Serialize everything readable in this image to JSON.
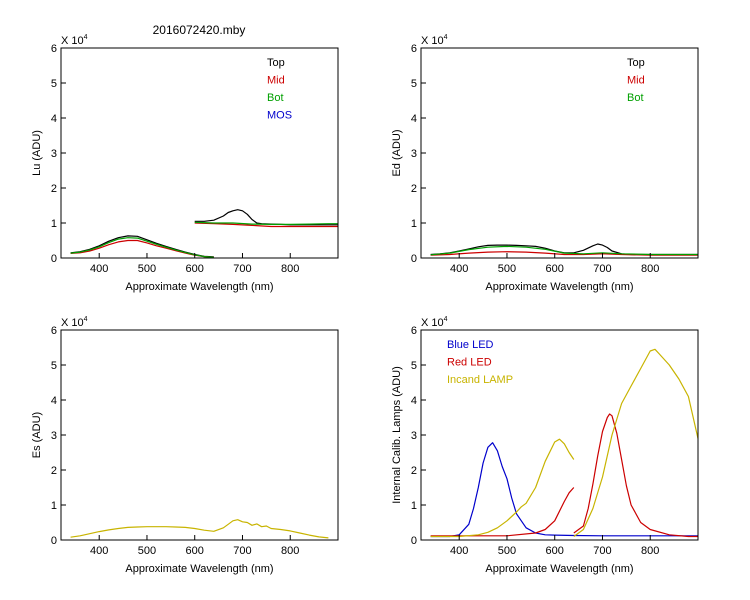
{
  "figure_title": "2016072420.mby",
  "multiplier_label": "X 10",
  "multiplier_exponent": "4",
  "colors": {
    "black": "#000000",
    "red": "#cc0000",
    "green": "#00a000",
    "blue": "#0000cc",
    "olive": "#c8b400"
  },
  "chart_data": [
    {
      "id": "lu",
      "type": "line",
      "title": "2016072420.mby",
      "xlabel": "Approximate Wavelength (nm)",
      "ylabel": "Lu (ADU)",
      "xlim": [
        320,
        900
      ],
      "ylim": [
        0,
        6
      ],
      "xticks": [
        400,
        500,
        600,
        700,
        800
      ],
      "yticks": [
        0,
        1,
        2,
        3,
        4,
        5,
        6
      ],
      "y_multiplier": "X 10^4",
      "legend": "top-right",
      "series": [
        {
          "name": "Top",
          "color": "#000000",
          "segments": [
            {
              "x": [
                340,
                360,
                380,
                400,
                420,
                440,
                460,
                480,
                500,
                520,
                540,
                560,
                580,
                600,
                620,
                640
              ],
              "y": [
                0.15,
                0.18,
                0.25,
                0.35,
                0.48,
                0.58,
                0.63,
                0.62,
                0.52,
                0.42,
                0.33,
                0.25,
                0.17,
                0.1,
                0.05,
                0.03
              ]
            },
            {
              "x": [
                600,
                620,
                640,
                660,
                670,
                680,
                690,
                700,
                710,
                720,
                730,
                740,
                760,
                780,
                800,
                820,
                840,
                860,
                880,
                900
              ],
              "y": [
                1.05,
                1.05,
                1.08,
                1.2,
                1.3,
                1.35,
                1.38,
                1.35,
                1.25,
                1.1,
                1.0,
                0.98,
                0.97,
                0.96,
                0.95,
                0.95,
                0.95,
                0.95,
                0.95,
                0.95
              ]
            }
          ]
        },
        {
          "name": "Mid",
          "color": "#cc0000",
          "segments": [
            {
              "x": [
                340,
                360,
                380,
                400,
                420,
                440,
                460,
                480,
                500,
                520,
                540,
                560,
                580,
                600,
                620,
                640
              ],
              "y": [
                0.13,
                0.15,
                0.2,
                0.28,
                0.38,
                0.46,
                0.5,
                0.5,
                0.43,
                0.35,
                0.28,
                0.21,
                0.14,
                0.08,
                0.04,
                0.02
              ]
            },
            {
              "x": [
                600,
                640,
                680,
                720,
                760,
                800,
                840,
                880,
                900
              ],
              "y": [
                1.0,
                0.98,
                0.96,
                0.93,
                0.9,
                0.9,
                0.9,
                0.9,
                0.9
              ]
            }
          ]
        },
        {
          "name": "Bot",
          "color": "#00a000",
          "segments": [
            {
              "x": [
                340,
                360,
                380,
                400,
                420,
                440,
                460,
                480,
                500,
                520,
                540,
                560,
                580,
                600,
                620,
                640
              ],
              "y": [
                0.14,
                0.17,
                0.23,
                0.32,
                0.44,
                0.54,
                0.58,
                0.57,
                0.48,
                0.39,
                0.31,
                0.23,
                0.16,
                0.09,
                0.04,
                0.02
              ]
            },
            {
              "x": [
                600,
                640,
                680,
                720,
                760,
                800,
                840,
                880,
                900
              ],
              "y": [
                1.02,
                1.0,
                1.0,
                0.97,
                0.96,
                0.96,
                0.97,
                0.98,
                0.98
              ]
            }
          ]
        },
        {
          "name": "MOS",
          "color": "#0000cc",
          "segments": []
        }
      ]
    },
    {
      "id": "ed",
      "type": "line",
      "xlabel": "Approximate Wavelength (nm)",
      "ylabel": "Ed  (ADU)",
      "xlim": [
        320,
        900
      ],
      "ylim": [
        0,
        6
      ],
      "xticks": [
        400,
        500,
        600,
        700,
        800
      ],
      "yticks": [
        0,
        1,
        2,
        3,
        4,
        5,
        6
      ],
      "y_multiplier": "X 10^4",
      "legend": "top-right",
      "series": [
        {
          "name": "Top",
          "color": "#000000",
          "segments": [
            {
              "x": [
                340,
                360,
                380,
                400,
                420,
                440,
                460,
                480,
                500,
                520,
                540,
                560,
                580,
                600,
                620,
                640,
                660,
                680,
                690,
                700,
                710,
                720,
                740,
                760,
                780,
                800,
                840,
                880,
                900
              ],
              "y": [
                0.1,
                0.12,
                0.15,
                0.2,
                0.26,
                0.32,
                0.36,
                0.37,
                0.37,
                0.36,
                0.35,
                0.33,
                0.28,
                0.2,
                0.15,
                0.15,
                0.22,
                0.35,
                0.4,
                0.37,
                0.3,
                0.2,
                0.12,
                0.1,
                0.1,
                0.1,
                0.1,
                0.1,
                0.1
              ]
            }
          ]
        },
        {
          "name": "Mid",
          "color": "#cc0000",
          "segments": [
            {
              "x": [
                340,
                380,
                420,
                460,
                500,
                540,
                580,
                620,
                660,
                700,
                740,
                800,
                900
              ],
              "y": [
                0.08,
                0.1,
                0.14,
                0.17,
                0.18,
                0.17,
                0.14,
                0.1,
                0.1,
                0.12,
                0.1,
                0.08,
                0.08
              ]
            }
          ]
        },
        {
          "name": "Bot",
          "color": "#00a000",
          "segments": [
            {
              "x": [
                340,
                380,
                420,
                460,
                500,
                540,
                580,
                620,
                660,
                700,
                740,
                800,
                900
              ],
              "y": [
                0.09,
                0.14,
                0.24,
                0.31,
                0.33,
                0.31,
                0.25,
                0.14,
                0.12,
                0.15,
                0.12,
                0.1,
                0.1
              ]
            }
          ]
        }
      ]
    },
    {
      "id": "es",
      "type": "line",
      "xlabel": "Approximate Wavelength (nm)",
      "ylabel": "Es  (ADU)",
      "xlim": [
        320,
        900
      ],
      "ylim": [
        0,
        6
      ],
      "xticks": [
        400,
        500,
        600,
        700,
        800
      ],
      "yticks": [
        0,
        1,
        2,
        3,
        4,
        5,
        6
      ],
      "y_multiplier": "X 10^4",
      "series": [
        {
          "name": "Es",
          "color": "#c8b400",
          "segments": [
            {
              "x": [
                340,
                360,
                380,
                400,
                420,
                440,
                460,
                480,
                500,
                520,
                540,
                560,
                580,
                600,
                620,
                640,
                660,
                670,
                680,
                690,
                700,
                710,
                720,
                730,
                740,
                750,
                760,
                780,
                800,
                820,
                840,
                860,
                880
              ],
              "y": [
                0.08,
                0.12,
                0.18,
                0.24,
                0.29,
                0.33,
                0.36,
                0.37,
                0.38,
                0.38,
                0.38,
                0.37,
                0.36,
                0.33,
                0.28,
                0.25,
                0.35,
                0.45,
                0.55,
                0.58,
                0.52,
                0.5,
                0.42,
                0.46,
                0.38,
                0.4,
                0.33,
                0.3,
                0.26,
                0.2,
                0.14,
                0.09,
                0.06
              ]
            }
          ]
        }
      ]
    },
    {
      "id": "lamps",
      "type": "line",
      "xlabel": "Approximate Wavelength (nm)",
      "ylabel": "Internal Calib. Lamps (ADU)",
      "xlim": [
        320,
        900
      ],
      "ylim": [
        0,
        6
      ],
      "xticks": [
        400,
        500,
        600,
        700,
        800
      ],
      "yticks": [
        0,
        1,
        2,
        3,
        4,
        5,
        6
      ],
      "y_multiplier": "X 10^4",
      "legend": "top-left",
      "series": [
        {
          "name": "Blue LED",
          "color": "#0000cc",
          "segments": [
            {
              "x": [
                340,
                380,
                400,
                420,
                430,
                440,
                450,
                460,
                470,
                480,
                490,
                500,
                510,
                520,
                530,
                540,
                560,
                580,
                600,
                640,
                700,
                800,
                900
              ],
              "y": [
                0.1,
                0.1,
                0.15,
                0.45,
                0.9,
                1.5,
                2.2,
                2.65,
                2.78,
                2.55,
                2.1,
                1.75,
                1.2,
                0.75,
                0.55,
                0.35,
                0.2,
                0.15,
                0.14,
                0.13,
                0.12,
                0.12,
                0.12
              ]
            }
          ]
        },
        {
          "name": "Red LED",
          "color": "#cc0000",
          "segments": [
            {
              "x": [
                340,
                400,
                500,
                560,
                580,
                600,
                620,
                630,
                640
              ],
              "y": [
                0.12,
                0.12,
                0.12,
                0.2,
                0.3,
                0.55,
                1.1,
                1.35,
                1.5
              ]
            },
            {
              "x": [
                640,
                660,
                670,
                680,
                690,
                700,
                710,
                715,
                720,
                730,
                740,
                750,
                760,
                780,
                800,
                840,
                880,
                900
              ],
              "y": [
                0.2,
                0.4,
                0.9,
                1.6,
                2.4,
                3.1,
                3.5,
                3.6,
                3.55,
                3.05,
                2.3,
                1.55,
                1.0,
                0.5,
                0.3,
                0.15,
                0.1,
                0.1
              ]
            }
          ]
        },
        {
          "name": "Incand LAMP",
          "color": "#c8b400",
          "segments": [
            {
              "x": [
                340,
                400,
                440,
                460,
                480,
                500,
                520,
                530,
                540,
                560,
                580,
                600,
                610,
                620,
                630,
                640
              ],
              "y": [
                0.1,
                0.1,
                0.15,
                0.22,
                0.35,
                0.55,
                0.8,
                0.95,
                1.05,
                1.5,
                2.25,
                2.8,
                2.88,
                2.75,
                2.5,
                2.3
              ]
            },
            {
              "x": [
                640,
                660,
                680,
                700,
                720,
                740,
                760,
                780,
                800,
                810,
                820,
                840,
                860,
                880,
                900
              ],
              "y": [
                0.1,
                0.3,
                0.9,
                1.8,
                3.0,
                3.9,
                4.4,
                4.9,
                5.4,
                5.45,
                5.3,
                5.0,
                4.6,
                4.1,
                2.9
              ]
            }
          ]
        }
      ]
    }
  ]
}
